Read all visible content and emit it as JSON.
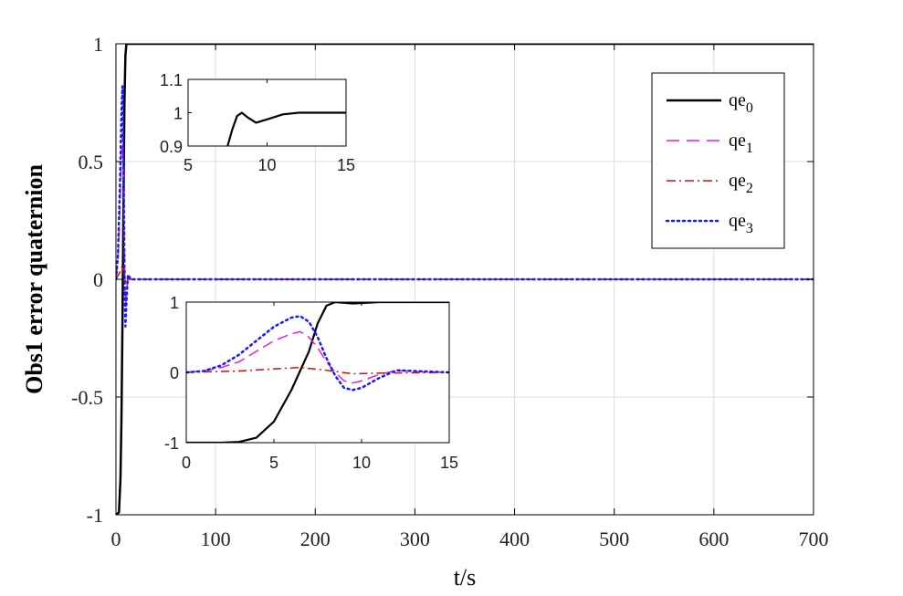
{
  "chart_data": [
    {
      "id": "main",
      "type": "line",
      "xlabel": "t/s",
      "ylabel": "Obs1 error quaternion",
      "xlim": [
        0,
        700
      ],
      "ylim": [
        -1,
        1
      ],
      "xticks": [
        0,
        100,
        200,
        300,
        400,
        500,
        600,
        700
      ],
      "yticks": [
        -1,
        -0.5,
        0,
        0.5,
        1
      ],
      "xtick_labels": [
        "0",
        "100",
        "200",
        "300",
        "400",
        "500",
        "600",
        "700"
      ],
      "ytick_labels": [
        "-1",
        "-0.5",
        "0",
        "0.5",
        "1"
      ],
      "grid": true,
      "legend_position": "top-right",
      "series": [
        {
          "name": "qe0",
          "label_base": "qe",
          "label_sub": "0",
          "color": "#000000",
          "dash": "",
          "width": 2.5,
          "points": [
            [
              0,
              -1
            ],
            [
              3,
              -0.99
            ],
            [
              4.5,
              -0.85
            ],
            [
              5.5,
              -0.6
            ],
            [
              6.5,
              -0.2
            ],
            [
              7.5,
              0.3
            ],
            [
              8.5,
              0.75
            ],
            [
              9.5,
              0.95
            ],
            [
              10.5,
              1.0
            ],
            [
              12,
              1.0
            ],
            [
              700,
              1.0
            ]
          ]
        },
        {
          "name": "qe1",
          "label_base": "qe",
          "label_sub": "1",
          "color": "#e020e0",
          "dash": "14 8",
          "width": 1.5,
          "points": [
            [
              0,
              0
            ],
            [
              2,
              0.08
            ],
            [
              4,
              0.3
            ],
            [
              5.5,
              0.55
            ],
            [
              6.5,
              0.62
            ],
            [
              7.5,
              0.45
            ],
            [
              8.5,
              0.1
            ],
            [
              9.5,
              -0.12
            ],
            [
              10.5,
              -0.05
            ],
            [
              12,
              0.01
            ],
            [
              15,
              0
            ],
            [
              700,
              0
            ]
          ]
        },
        {
          "name": "qe2",
          "label_base": "qe",
          "label_sub": "2",
          "color": "#d01010",
          "dash": "10 4 2 4",
          "width": 1.5,
          "points": [
            [
              0,
              0
            ],
            [
              4,
              0.03
            ],
            [
              6.5,
              0.06
            ],
            [
              8,
              0.03
            ],
            [
              10,
              -0.02
            ],
            [
              12,
              0
            ],
            [
              700,
              0
            ]
          ]
        },
        {
          "name": "qe3",
          "label_base": "qe",
          "label_sub": "3",
          "color": "#1a1aff",
          "dash": "2 4",
          "width": 2.5,
          "points": [
            [
              0,
              0
            ],
            [
              2,
              0.1
            ],
            [
              4,
              0.4
            ],
            [
              5.5,
              0.7
            ],
            [
              6.5,
              0.82
            ],
            [
              7.5,
              0.55
            ],
            [
              8.5,
              0.05
            ],
            [
              9.5,
              -0.2
            ],
            [
              10.5,
              -0.1
            ],
            [
              12,
              0.02
            ],
            [
              15,
              0
            ],
            [
              700,
              0
            ]
          ]
        }
      ]
    },
    {
      "id": "inset-top",
      "type": "line",
      "xlim": [
        5,
        15
      ],
      "ylim": [
        0.9,
        1.1
      ],
      "xticks": [
        5,
        10,
        15
      ],
      "yticks": [
        0.9,
        1,
        1.1
      ],
      "xtick_labels": [
        "5",
        "10",
        "15"
      ],
      "ytick_labels": [
        "0.9",
        "1",
        "1.1"
      ],
      "series": [
        {
          "name": "qe0",
          "color": "#000000",
          "dash": "",
          "width": 2.2,
          "points": [
            [
              7.5,
              0.9
            ],
            [
              7.8,
              0.95
            ],
            [
              8.1,
              0.99
            ],
            [
              8.4,
              1.0
            ],
            [
              8.8,
              0.985
            ],
            [
              9.3,
              0.97
            ],
            [
              10,
              0.98
            ],
            [
              11,
              0.995
            ],
            [
              12,
              1.0
            ],
            [
              15,
              1.0
            ]
          ]
        }
      ]
    },
    {
      "id": "inset-bottom",
      "type": "line",
      "xlim": [
        0,
        15
      ],
      "ylim": [
        -1,
        1
      ],
      "xticks": [
        0,
        5,
        10,
        15
      ],
      "yticks": [
        -1,
        0,
        1
      ],
      "xtick_labels": [
        "0",
        "5",
        "10",
        "15"
      ],
      "ytick_labels": [
        "-1",
        "0",
        "1"
      ],
      "series": [
        {
          "name": "qe0",
          "color": "#000000",
          "dash": "",
          "width": 2.2,
          "points": [
            [
              0,
              -1
            ],
            [
              2,
              -1
            ],
            [
              3,
              -0.99
            ],
            [
              4,
              -0.93
            ],
            [
              5,
              -0.7
            ],
            [
              6,
              -0.25
            ],
            [
              7,
              0.3
            ],
            [
              7.5,
              0.7
            ],
            [
              8,
              0.95
            ],
            [
              8.5,
              1.0
            ],
            [
              9.5,
              0.98
            ],
            [
              11,
              1.0
            ],
            [
              15,
              1.0
            ]
          ]
        },
        {
          "name": "qe1",
          "color": "#e020e0",
          "dash": "12 6",
          "width": 1.5,
          "points": [
            [
              0,
              0
            ],
            [
              1,
              0.02
            ],
            [
              2,
              0.07
            ],
            [
              3,
              0.15
            ],
            [
              4,
              0.3
            ],
            [
              5,
              0.45
            ],
            [
              6,
              0.55
            ],
            [
              6.5,
              0.58
            ],
            [
              7,
              0.5
            ],
            [
              7.5,
              0.35
            ],
            [
              8,
              0.15
            ],
            [
              8.5,
              0
            ],
            [
              9,
              -0.12
            ],
            [
              9.5,
              -0.15
            ],
            [
              10,
              -0.12
            ],
            [
              11,
              -0.03
            ],
            [
              12,
              0.03
            ],
            [
              13,
              0.01
            ],
            [
              15,
              0
            ]
          ]
        },
        {
          "name": "qe2",
          "color": "#d01010",
          "dash": "9 4 2 4",
          "width": 1.5,
          "points": [
            [
              0,
              0
            ],
            [
              3,
              0.02
            ],
            [
              5,
              0.05
            ],
            [
              6.5,
              0.07
            ],
            [
              8,
              0.03
            ],
            [
              9.5,
              -0.02
            ],
            [
              11,
              -0.01
            ],
            [
              15,
              0
            ]
          ]
        },
        {
          "name": "qe3",
          "color": "#1a1aff",
          "dash": "2 4",
          "width": 2.5,
          "points": [
            [
              0,
              0
            ],
            [
              1,
              0.02
            ],
            [
              2,
              0.1
            ],
            [
              3,
              0.25
            ],
            [
              4,
              0.45
            ],
            [
              5,
              0.65
            ],
            [
              6,
              0.78
            ],
            [
              6.5,
              0.8
            ],
            [
              7,
              0.72
            ],
            [
              7.5,
              0.5
            ],
            [
              8,
              0.2
            ],
            [
              8.5,
              -0.05
            ],
            [
              9,
              -0.22
            ],
            [
              9.5,
              -0.25
            ],
            [
              10,
              -0.22
            ],
            [
              11,
              -0.08
            ],
            [
              12,
              0.03
            ],
            [
              13,
              0.02
            ],
            [
              15,
              0
            ]
          ]
        }
      ]
    }
  ]
}
